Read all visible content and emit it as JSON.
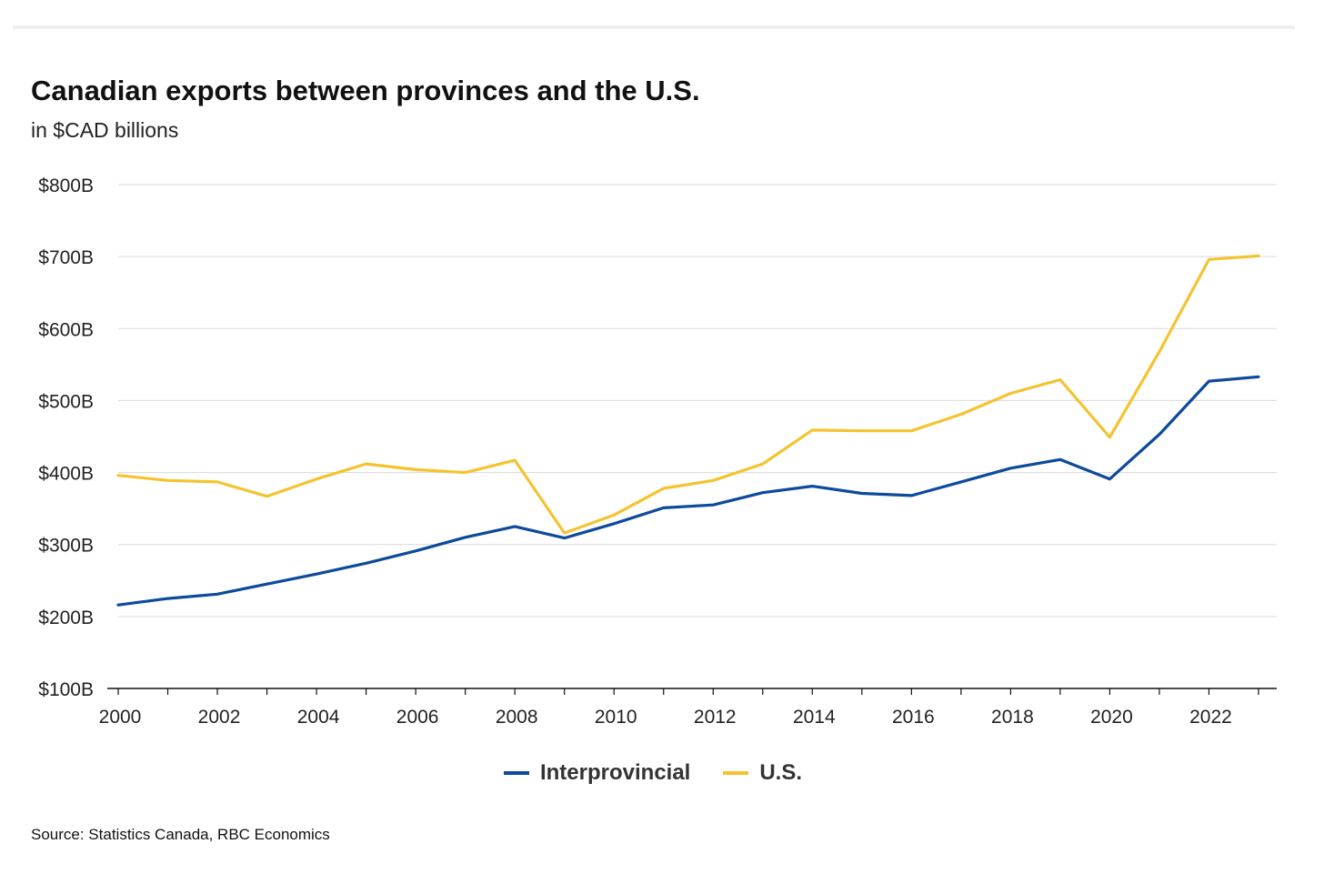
{
  "chart_data": {
    "type": "line",
    "title": "Canadian exports between provinces and the U.S.",
    "subtitle": "in $CAD billions",
    "x": [
      2000,
      2001,
      2002,
      2003,
      2004,
      2005,
      2006,
      2007,
      2008,
      2009,
      2010,
      2011,
      2012,
      2013,
      2014,
      2015,
      2016,
      2017,
      2018,
      2019,
      2020,
      2021,
      2022,
      2023
    ],
    "series": [
      {
        "name": "Interprovincial",
        "color": "#0d4a9c",
        "values": [
          216,
          225,
          231,
          245,
          259,
          274,
          291,
          310,
          325,
          309,
          329,
          351,
          355,
          372,
          381,
          371,
          368,
          387,
          406,
          418,
          391,
          453,
          527,
          533
        ]
      },
      {
        "name": "U.S.",
        "color": "#f5c330",
        "values": [
          396,
          389,
          387,
          367,
          391,
          412,
          404,
          400,
          417,
          316,
          341,
          378,
          389,
          412,
          459,
          458,
          458,
          481,
          510,
          529,
          449,
          568,
          696,
          701
        ]
      }
    ],
    "ylim": [
      100,
      800
    ],
    "yticks": [
      100,
      200,
      300,
      400,
      500,
      600,
      700,
      800
    ],
    "ytick_labels": [
      "$100B",
      "$200B",
      "$300B",
      "$400B",
      "$500B",
      "$600B",
      "$700B",
      "$800B"
    ],
    "xticks": [
      2000,
      2002,
      2004,
      2006,
      2008,
      2010,
      2012,
      2014,
      2016,
      2018,
      2020,
      2022
    ],
    "xtick_labels": [
      "2000",
      "2002",
      "2004",
      "2006",
      "2008",
      "2010",
      "2012",
      "2014",
      "2016",
      "2018",
      "2020",
      "2022"
    ],
    "grid": true,
    "legend_position": "bottom-center",
    "xlabel": "",
    "ylabel": "",
    "source": "Source: Statistics Canada, RBC Economics"
  }
}
